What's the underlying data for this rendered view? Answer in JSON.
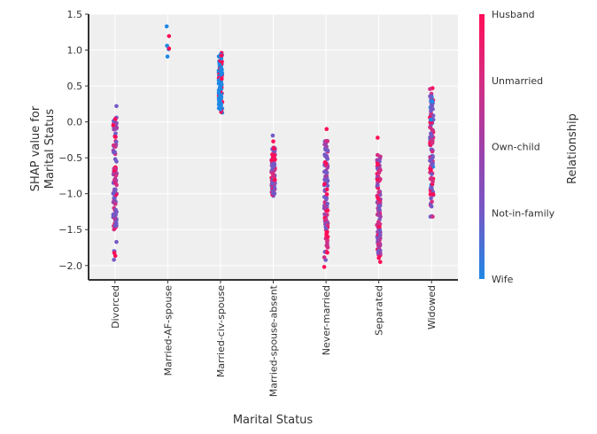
{
  "chart_data": {
    "type": "scatter",
    "xlabel": "Marital Status",
    "ylabel_line1": "SHAP value for",
    "ylabel_line2": "Marital Status",
    "ylim": [
      -2.2,
      1.5
    ],
    "yticks": [
      -2.0,
      -1.5,
      -1.0,
      -0.5,
      0.0,
      0.5,
      1.0,
      1.5
    ],
    "ytick_labels": [
      "−2.0",
      "−1.5",
      "−1.0",
      "−0.5",
      "0.0",
      "0.5",
      "1.0",
      "1.5"
    ],
    "grid": true,
    "categories": [
      "Divorced",
      "Married-AF-spouse",
      "Married-civ-spouse",
      "Married-spouse-absent",
      "Never-married",
      "Separated",
      "Widowed"
    ],
    "category_ranges": [
      {
        "category": "Divorced",
        "min": -1.92,
        "max": 0.22,
        "cluster_min": -1.5,
        "cluster_max": 0.1
      },
      {
        "category": "Married-AF-spouse",
        "min": 0.91,
        "max": 1.33,
        "cluster_min": 1.0,
        "cluster_max": 1.07
      },
      {
        "category": "Married-civ-spouse",
        "min": 0.13,
        "max": 0.96,
        "cluster_min": 0.15,
        "cluster_max": 0.95
      },
      {
        "category": "Married-spouse-absent",
        "min": -1.03,
        "max": -0.19,
        "cluster_min": -1.0,
        "cluster_max": -0.35
      },
      {
        "category": "Never-married",
        "min": -2.02,
        "max": -0.1,
        "cluster_min": -1.95,
        "cluster_max": -0.2
      },
      {
        "category": "Separated",
        "min": -1.95,
        "max": -0.22,
        "cluster_min": -1.9,
        "cluster_max": -0.45
      },
      {
        "category": "Widowed",
        "min": -1.32,
        "max": 0.47,
        "cluster_min": -1.2,
        "cluster_max": 0.4
      }
    ],
    "colorbar": {
      "title": "Relationship",
      "labels": [
        "Husband",
        "Unmarried",
        "Own-child",
        "Not-in-family",
        "Wife"
      ],
      "colors": [
        "#ff0d57",
        "#d42d83",
        "#a040a8",
        "#7359c6",
        "#1e88e5"
      ]
    }
  }
}
